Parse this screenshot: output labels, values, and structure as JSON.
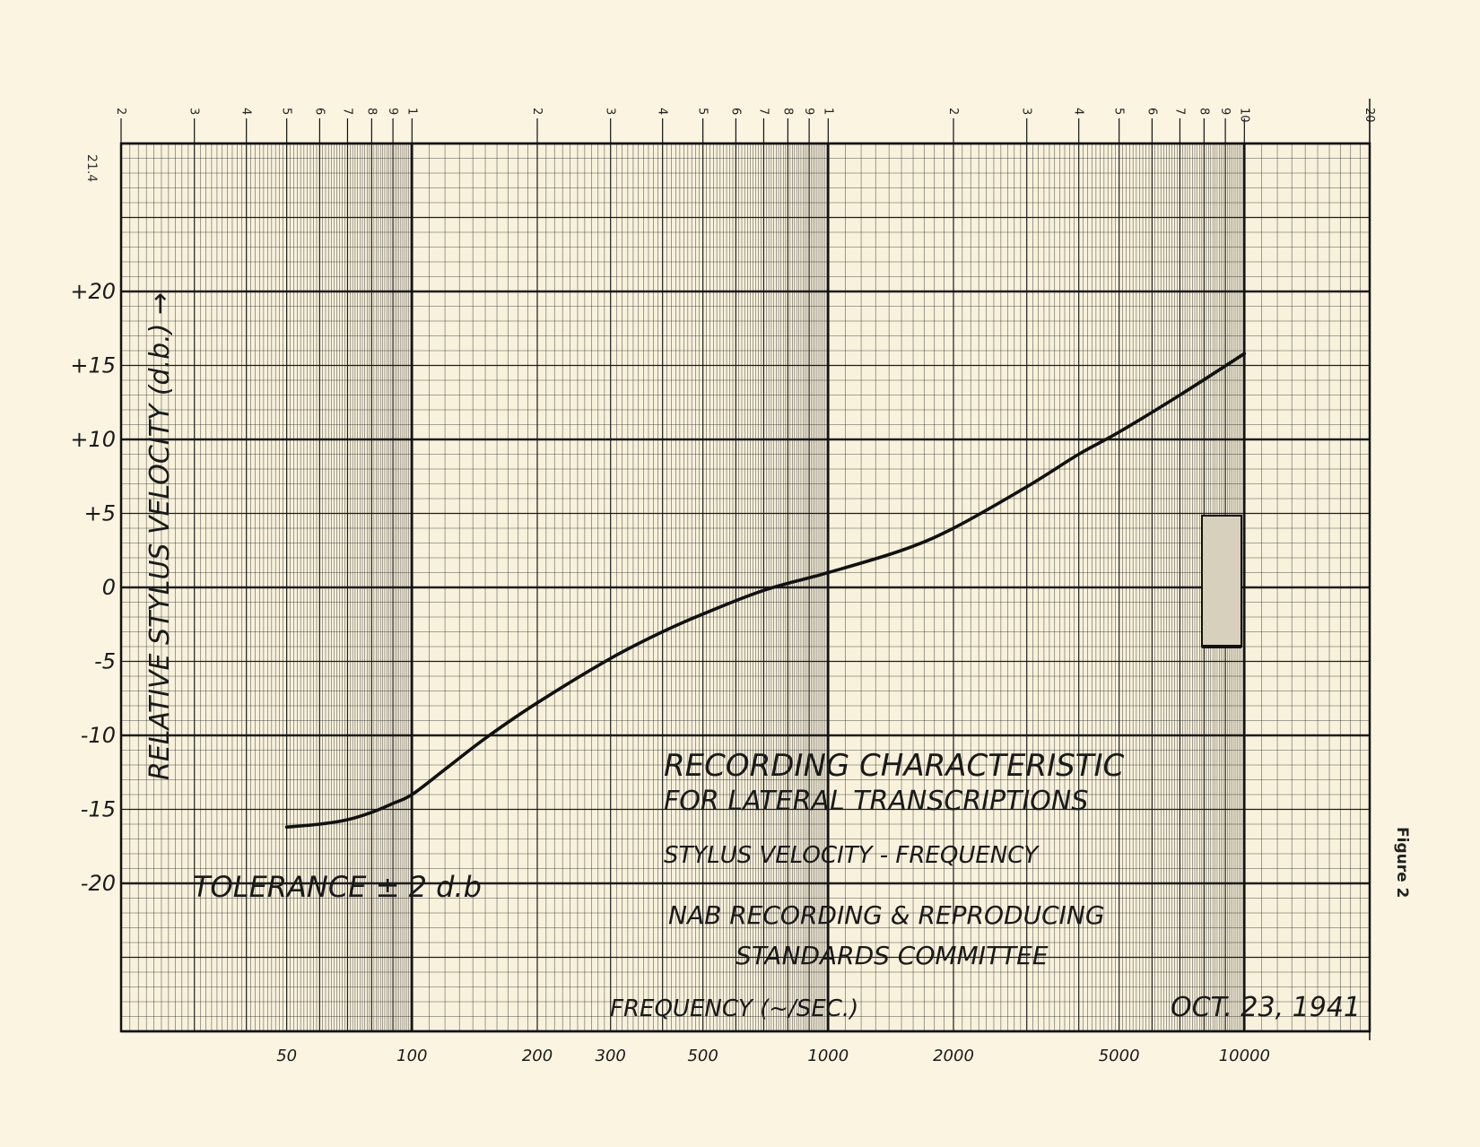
{
  "page": {
    "page_label": "21.4",
    "figure_label": "Figure 2",
    "paper_color": "#fbf4e1",
    "ink_color": "#111111"
  },
  "chart_data": {
    "type": "line",
    "title": "RECORDING CHARACTERISTIC",
    "title_line2": "FOR LATERAL TRANSCRIPTIONS",
    "subtitle": "STYLUS VELOCITY - FREQUENCY",
    "org_line1": "NAB RECORDING & REPRODUCING",
    "org_line2": "STANDARDS COMMITTEE",
    "tolerance_note": "TOLERANCE ± 2 d.b",
    "date": "OCT. 23, 1941",
    "xlabel": "FREQUENCY (~/SEC.)",
    "ylabel": "RELATIVE STYLUS VELOCITY (d.b.) →",
    "x_scale": "log",
    "xlim": [
      20,
      20000
    ],
    "ylim": [
      -30,
      30
    ],
    "grid": true,
    "x_tick_labels": [
      {
        "value": 50,
        "label": "50"
      },
      {
        "value": 100,
        "label": "100"
      },
      {
        "value": 200,
        "label": "200"
      },
      {
        "value": 300,
        "label": "300"
      },
      {
        "value": 500,
        "label": "500"
      },
      {
        "value": 1000,
        "label": "1000"
      },
      {
        "value": 2000,
        "label": "2000"
      },
      {
        "value": 5000,
        "label": "5000"
      },
      {
        "value": 10000,
        "label": "10000"
      }
    ],
    "y_tick_labels": [
      {
        "value": 20,
        "label": "+20"
      },
      {
        "value": 15,
        "label": "+15"
      },
      {
        "value": 10,
        "label": "+10"
      },
      {
        "value": 5,
        "label": "+5"
      },
      {
        "value": 0,
        "label": "0"
      },
      {
        "value": -5,
        "label": "-5"
      },
      {
        "value": -10,
        "label": "-10"
      },
      {
        "value": -15,
        "label": "-15"
      },
      {
        "value": -20,
        "label": "-20"
      }
    ],
    "top_scale_labels": [
      {
        "value": 20,
        "label": "2"
      },
      {
        "value": 30,
        "label": "3"
      },
      {
        "value": 40,
        "label": "4"
      },
      {
        "value": 50,
        "label": "5"
      },
      {
        "value": 60,
        "label": "6"
      },
      {
        "value": 70,
        "label": "7"
      },
      {
        "value": 80,
        "label": "8"
      },
      {
        "value": 90,
        "label": "9"
      },
      {
        "value": 100,
        "label": "1"
      },
      {
        "value": 200,
        "label": "2"
      },
      {
        "value": 300,
        "label": "3"
      },
      {
        "value": 400,
        "label": "4"
      },
      {
        "value": 500,
        "label": "5"
      },
      {
        "value": 600,
        "label": "6"
      },
      {
        "value": 700,
        "label": "7"
      },
      {
        "value": 800,
        "label": "8"
      },
      {
        "value": 900,
        "label": "9"
      },
      {
        "value": 1000,
        "label": "1"
      },
      {
        "value": 2000,
        "label": "2"
      },
      {
        "value": 3000,
        "label": "3"
      },
      {
        "value": 4000,
        "label": "4"
      },
      {
        "value": 5000,
        "label": "5"
      },
      {
        "value": 6000,
        "label": "6"
      },
      {
        "value": 7000,
        "label": "7"
      },
      {
        "value": 8000,
        "label": "8"
      },
      {
        "value": 9000,
        "label": "9"
      },
      {
        "value": 10000,
        "label": "10"
      },
      {
        "value": 20000,
        "label": "20"
      }
    ],
    "series": [
      {
        "x": [
          50,
          60,
          70,
          80,
          90,
          100,
          120,
          150,
          200,
          300,
          400,
          500,
          700,
          1000,
          1500,
          2000,
          3000,
          4000,
          5000,
          7000,
          10000
        ],
        "y": [
          -16.2,
          -16.0,
          -15.7,
          -15.2,
          -14.6,
          -14.0,
          -12.3,
          -10.2,
          -7.8,
          -4.8,
          -3.0,
          -1.8,
          -0.2,
          1.0,
          2.5,
          4.0,
          6.8,
          9.0,
          10.5,
          13.0,
          15.8
        ]
      }
    ]
  }
}
